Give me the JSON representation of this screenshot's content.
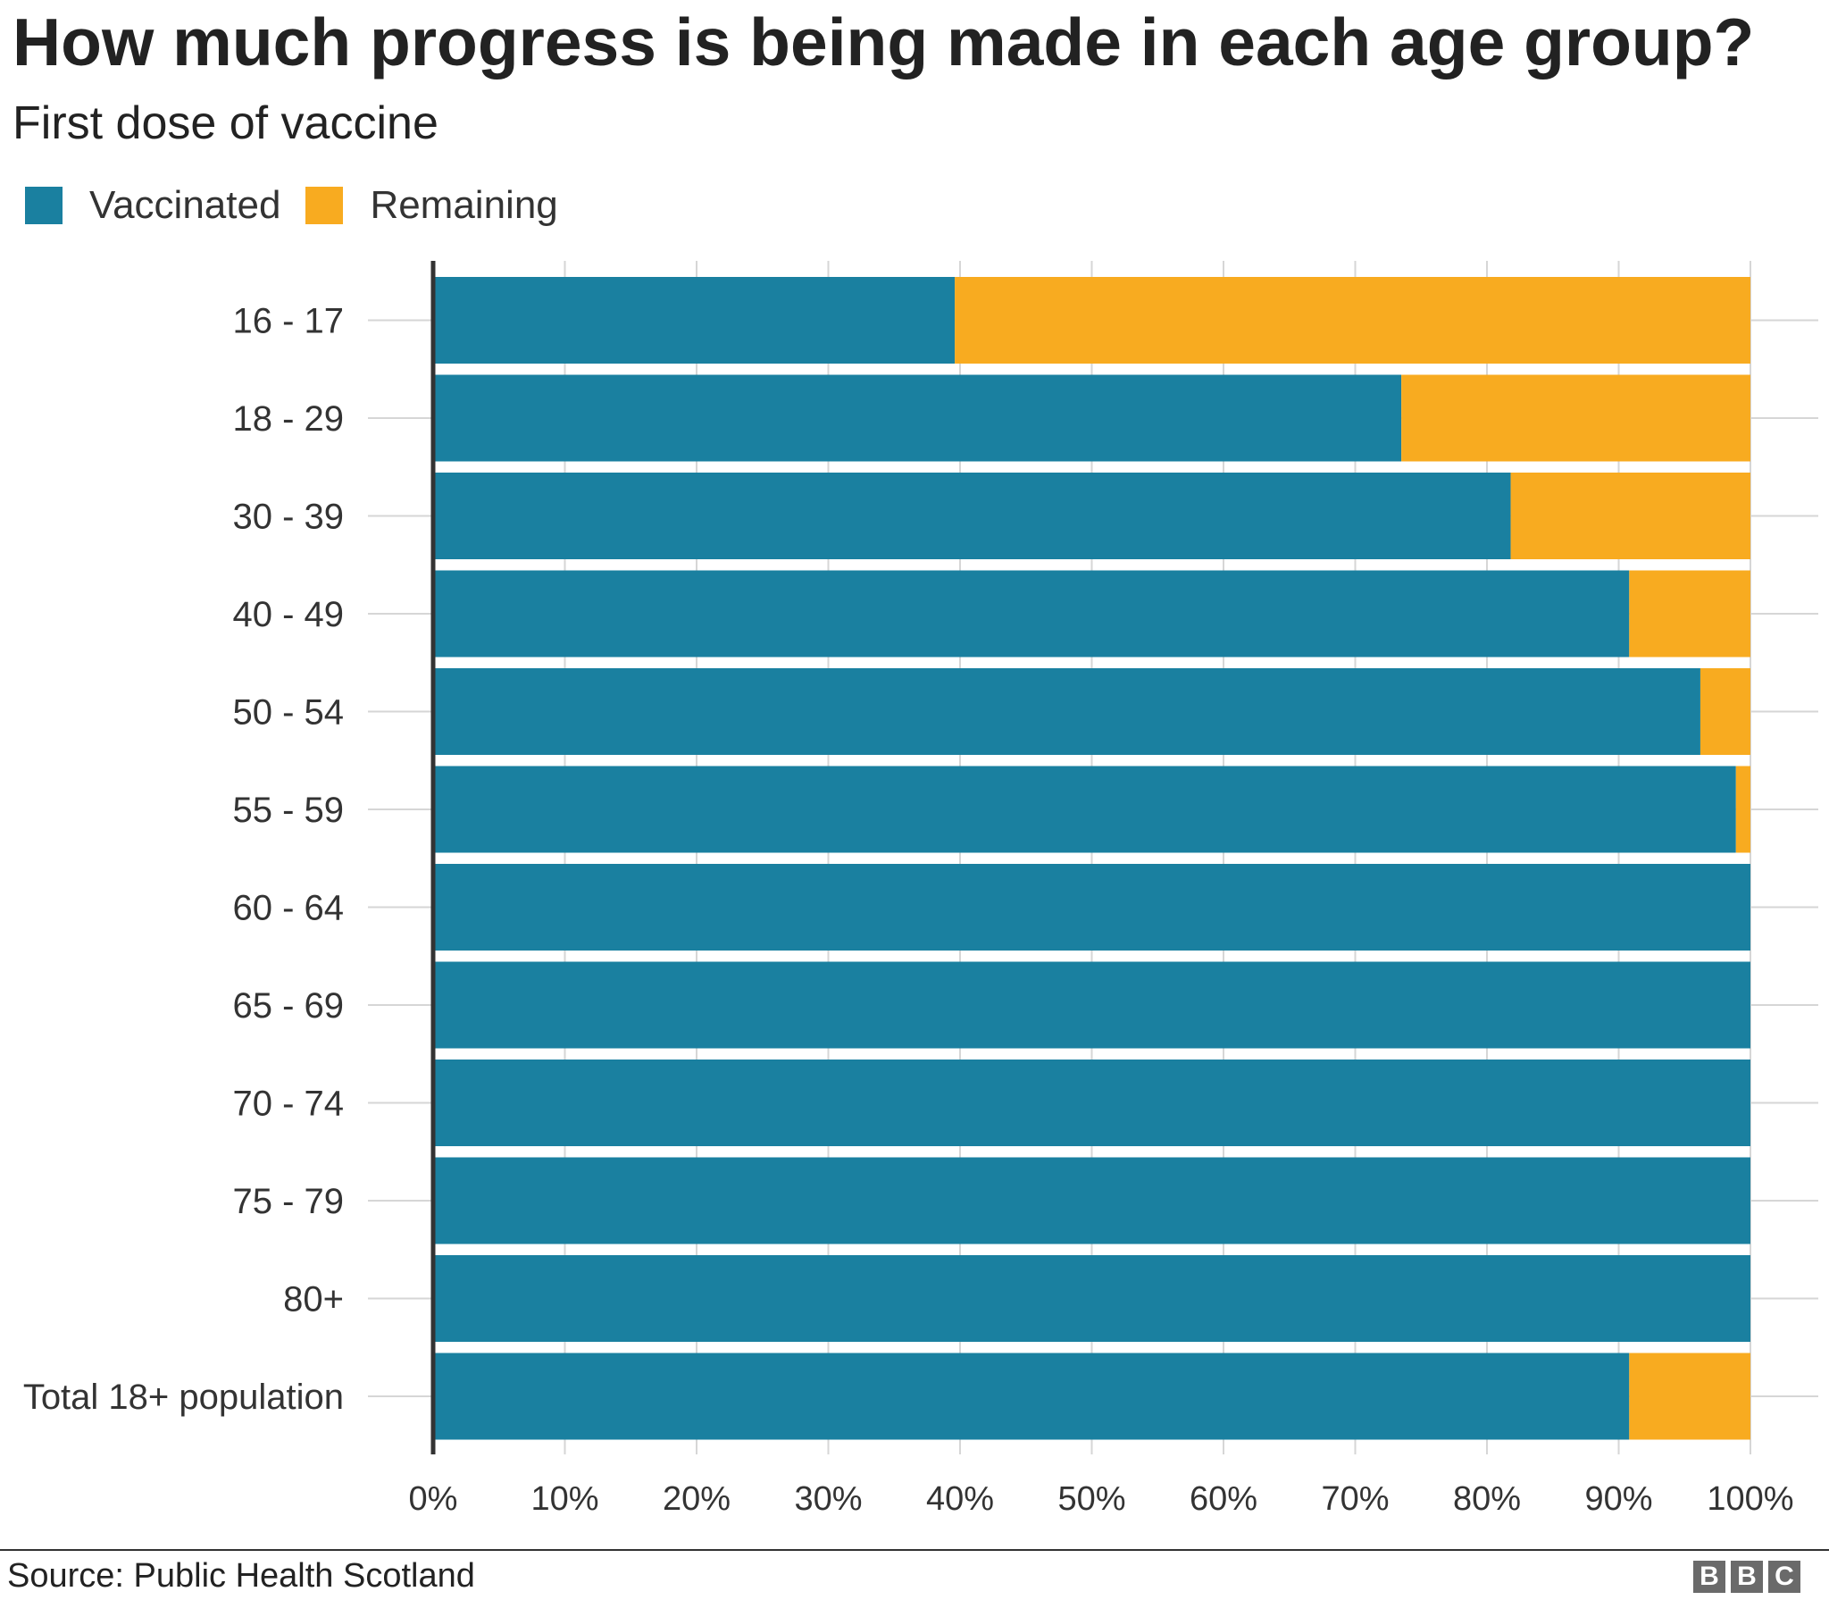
{
  "title": "How much progress is being made in each age group?",
  "subtitle": "First dose of vaccine",
  "legend": {
    "items": [
      {
        "label": "Vaccinated",
        "color": "#1a80a0"
      },
      {
        "label": "Remaining",
        "color": "#f8ab20"
      }
    ]
  },
  "footer": {
    "source": "Source: Public Health Scotland",
    "logo": [
      "B",
      "B",
      "C"
    ]
  },
  "chart_data": {
    "type": "bar",
    "orientation": "horizontal",
    "stacked": true,
    "categories": [
      "16 - 17",
      "18 - 29",
      "30 - 39",
      "40 - 49",
      "50 - 54",
      "55 - 59",
      "60 - 64",
      "65 - 69",
      "70 - 74",
      "75 - 79",
      "80+",
      "Total 18+ population"
    ],
    "series": [
      {
        "name": "Vaccinated",
        "color": "#1a80a0",
        "values": [
          39.6,
          73.5,
          81.8,
          90.8,
          96.2,
          98.9,
          100,
          100,
          100,
          100,
          100,
          90.8
        ]
      },
      {
        "name": "Remaining",
        "color": "#f8ab20",
        "values": [
          60.4,
          26.5,
          18.2,
          9.2,
          3.8,
          1.1,
          0,
          0,
          0,
          0,
          0,
          9.2
        ]
      }
    ],
    "xlim": [
      0,
      100
    ],
    "xticks": [
      "0%",
      "10%",
      "20%",
      "30%",
      "40%",
      "50%",
      "60%",
      "70%",
      "80%",
      "90%",
      "100%"
    ],
    "xlabel": "",
    "ylabel": "",
    "grid": true,
    "legend_position": "top-left"
  }
}
